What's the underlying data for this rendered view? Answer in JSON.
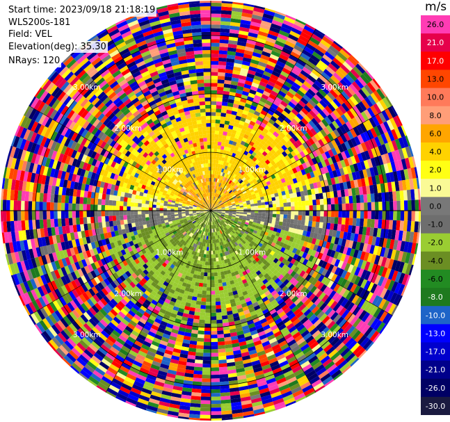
{
  "info": {
    "start_time": "Start time: 2023/09/18 21:18:19",
    "instrument": "WLS200s-181",
    "field": "Field: VEL",
    "elevation": "Elevation(deg): 35.30",
    "nrays": "NRays: 120"
  },
  "colorbar": {
    "unit": "m/s",
    "ticks": [
      "26.0",
      "21.0",
      "17.0",
      "13.0",
      "10.0",
      "8.0",
      "6.0",
      "4.0",
      "2.0",
      "1.0",
      "0.0",
      "-1.0",
      "-2.0",
      "-4.0",
      "-6.0",
      "-8.0",
      "-10.0",
      "-13.0",
      "-17.0",
      "-21.0",
      "-26.0",
      "-30.0"
    ],
    "colors": [
      "#ff3cb4",
      "#e6004b",
      "#ff0000",
      "#ff4600",
      "#ff7a5a",
      "#ff9e78",
      "#ffa500",
      "#ffd200",
      "#ffff14",
      "#fafa96",
      "#787878",
      "#6e6e6e",
      "#9acd32",
      "#6b8e23",
      "#228b22",
      "#1e7a1e",
      "#1e64c8",
      "#0000ff",
      "#0000cd",
      "#00008b",
      "#000064",
      "#1a1a40"
    ]
  },
  "range_labels": [
    "1.00km",
    "2.00km",
    "3.00km"
  ],
  "chart_data": {
    "type": "heatmap",
    "projection": "polar (PPI)",
    "field": "VEL",
    "units": "m/s",
    "nrays": 120,
    "elevation_deg": 35.3,
    "range_rings_km": [
      1,
      2,
      3
    ],
    "colorbar_ticks": [
      26,
      21,
      17,
      13,
      10,
      8,
      6,
      4,
      2,
      1,
      0,
      -1,
      -2,
      -4,
      -6,
      -8,
      -10,
      -13,
      -17,
      -21,
      -26,
      -30
    ],
    "vmin": -30,
    "vmax": 26,
    "pattern": {
      "north_sector_velocity_ms": 4,
      "south_sector_velocity_ms": -5,
      "outer_region": "noise (random values across full scale)"
    }
  }
}
